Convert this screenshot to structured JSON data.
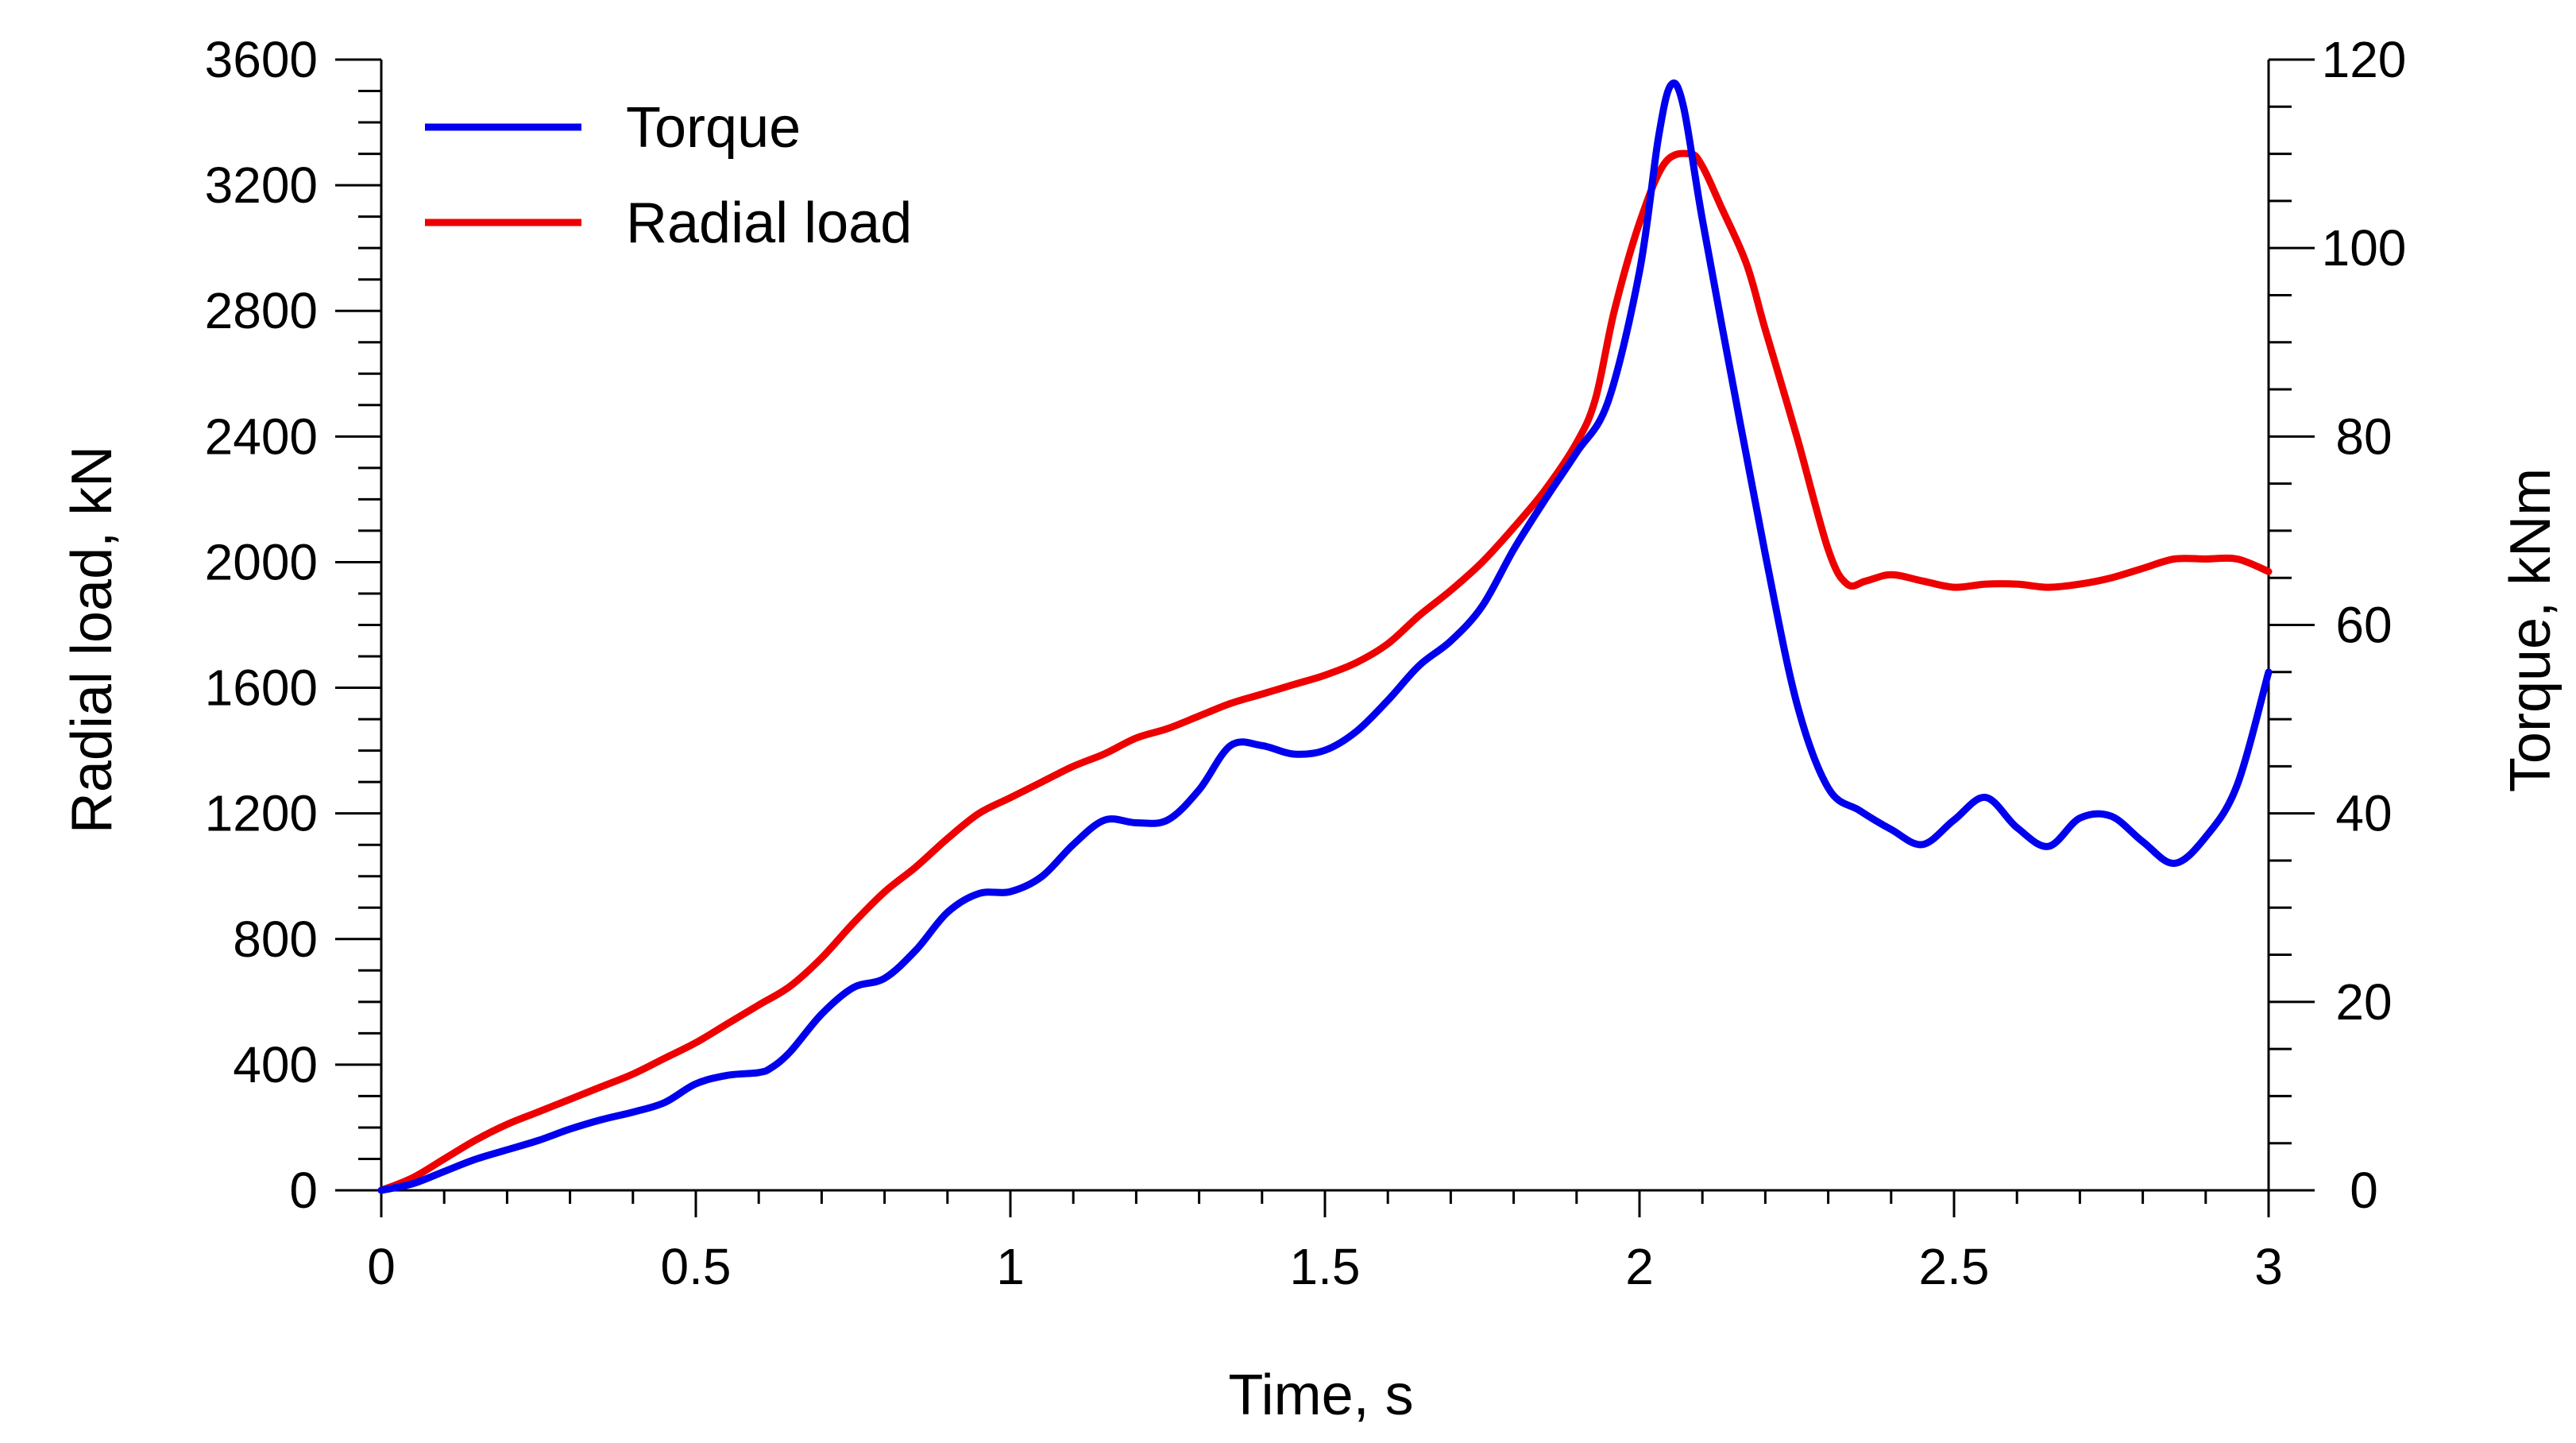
{
  "chart_data": {
    "type": "line",
    "title": "",
    "xlabel": "Time, s",
    "ylabel_left": "Radial load, kN",
    "ylabel_right": "Torque, kNm",
    "xlim": [
      0,
      3
    ],
    "ylim_left": [
      0,
      3600
    ],
    "ylim_right": [
      0,
      120
    ],
    "x_ticks": [
      0,
      0.5,
      1,
      1.5,
      2,
      2.5,
      3
    ],
    "x_tick_labels": [
      "0",
      "0.5",
      "1",
      "1.5",
      "2",
      "2.5",
      "3"
    ],
    "y_left_ticks": [
      0,
      400,
      800,
      1200,
      1600,
      2000,
      2400,
      2800,
      3200,
      3600
    ],
    "y_left_tick_labels": [
      "0",
      "400",
      "800",
      "1200",
      "1600",
      "2000",
      "2400",
      "2800",
      "3200",
      "3600"
    ],
    "y_right_ticks": [
      0,
      20,
      40,
      60,
      80,
      100,
      120
    ],
    "y_right_tick_labels": [
      "0",
      "20",
      "40",
      "60",
      "80",
      "100",
      "120"
    ],
    "grid": false,
    "legend_position": "top-left",
    "series": [
      {
        "name": "Torque",
        "axis": "right",
        "color": "#0000ee",
        "x": [
          0,
          0.05,
          0.1,
          0.15,
          0.2,
          0.25,
          0.3,
          0.35,
          0.4,
          0.45,
          0.5,
          0.55,
          0.6,
          0.62,
          0.65,
          0.7,
          0.75,
          0.8,
          0.85,
          0.9,
          0.95,
          1.0,
          1.05,
          1.1,
          1.15,
          1.2,
          1.25,
          1.3,
          1.35,
          1.4,
          1.45,
          1.5,
          1.55,
          1.6,
          1.65,
          1.7,
          1.75,
          1.8,
          1.85,
          1.9,
          1.95,
          2.0,
          2.03,
          2.05,
          2.07,
          2.1,
          2.15,
          2.2,
          2.25,
          2.3,
          2.35,
          2.4,
          2.45,
          2.5,
          2.55,
          2.6,
          2.65,
          2.7,
          2.75,
          2.8,
          2.85,
          2.9,
          2.95,
          3.0
        ],
        "y": [
          0,
          0.7,
          2.0,
          3.3,
          4.3,
          5.3,
          6.5,
          7.5,
          8.3,
          9.3,
          11.3,
          12.2,
          12.5,
          13.0,
          14.7,
          18.7,
          21.5,
          22.5,
          25.5,
          29.5,
          31.5,
          31.7,
          33.3,
          36.7,
          39.3,
          39.0,
          39.3,
          42.5,
          47.2,
          47.2,
          46.3,
          46.7,
          48.7,
          52.0,
          55.7,
          58.3,
          62.0,
          68.0,
          73.3,
          78.3,
          83.7,
          97.5,
          111.7,
          117.3,
          115.0,
          103.0,
          85.0,
          67.5,
          51.7,
          42.7,
          40.3,
          38.3,
          36.7,
          39.3,
          41.7,
          38.5,
          36.5,
          39.5,
          39.7,
          37.0,
          34.7,
          37.5,
          43.0,
          55.0
        ]
      },
      {
        "name": "Radial load",
        "axis": "left",
        "color": "#ee0000",
        "x": [
          0,
          0.05,
          0.1,
          0.15,
          0.2,
          0.25,
          0.3,
          0.35,
          0.4,
          0.45,
          0.5,
          0.55,
          0.6,
          0.65,
          0.7,
          0.75,
          0.8,
          0.85,
          0.9,
          0.95,
          1.0,
          1.05,
          1.1,
          1.15,
          1.2,
          1.25,
          1.3,
          1.35,
          1.4,
          1.45,
          1.5,
          1.55,
          1.6,
          1.65,
          1.7,
          1.75,
          1.8,
          1.85,
          1.9,
          1.93,
          1.96,
          2.0,
          2.04,
          2.08,
          2.1,
          2.13,
          2.17,
          2.2,
          2.25,
          2.3,
          2.33,
          2.36,
          2.4,
          2.45,
          2.5,
          2.55,
          2.6,
          2.65,
          2.7,
          2.75,
          2.8,
          2.85,
          2.9,
          2.95,
          3.0
        ],
        "y": [
          0,
          40,
          100,
          160,
          210,
          250,
          290,
          330,
          370,
          420,
          470,
          530,
          590,
          650,
          740,
          850,
          950,
          1030,
          1120,
          1200,
          1250,
          1300,
          1350,
          1390,
          1440,
          1470,
          1510,
          1550,
          1580,
          1610,
          1640,
          1680,
          1740,
          1830,
          1910,
          2000,
          2110,
          2230,
          2380,
          2520,
          2800,
          3080,
          3270,
          3300,
          3260,
          3130,
          2950,
          2740,
          2400,
          2040,
          1930,
          1940,
          1960,
          1940,
          1920,
          1930,
          1930,
          1920,
          1930,
          1950,
          1980,
          2010,
          2010,
          2010,
          1970
        ]
      }
    ]
  }
}
